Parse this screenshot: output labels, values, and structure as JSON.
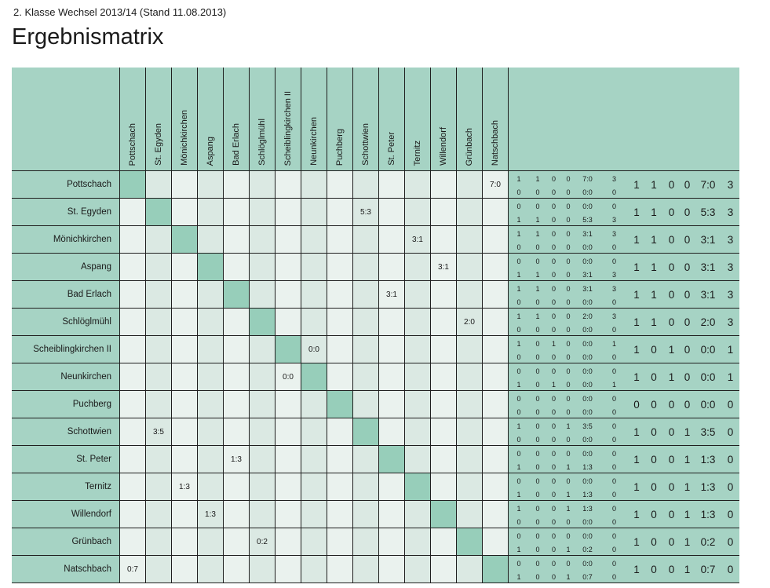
{
  "page": {
    "subtitle": "2. Klasse Wechsel 2013/14 (Stand 11.08.2013)",
    "title": "Ergebnismatrix"
  },
  "colors": {
    "header_bg": "#a6d3c4",
    "diagonal_bg": "#97ceba",
    "cell_light": "#eaf2ee",
    "cell_dark": "#dbe9e3",
    "border": "#1f1f1f",
    "text": "#1a1a1a"
  },
  "teams": [
    "Pottschach",
    "St. Egyden",
    "Mönichkirchen",
    "Aspang",
    "Bad Erlach",
    "Schlöglmühl",
    "Scheiblingkirchen II",
    "Neunkirchen",
    "Puchberg",
    "Schottwien",
    "St. Peter",
    "Ternitz",
    "Willendorf",
    "Grünbach",
    "Natschbach"
  ],
  "rows": [
    {
      "team": "Pottschach",
      "results": [
        "",
        "",
        "",
        "",
        "",
        "",
        "",
        "",
        "",
        "",
        "",
        "",
        "",
        "",
        "7:0"
      ],
      "home": [
        "1",
        "1",
        "0",
        "0",
        "7:0",
        "3"
      ],
      "away": [
        "0",
        "0",
        "0",
        "0",
        "0:0",
        "0"
      ],
      "total": [
        "1",
        "1",
        "0",
        "0",
        "7:0",
        "3"
      ]
    },
    {
      "team": "St. Egyden",
      "results": [
        "",
        "",
        "",
        "",
        "",
        "",
        "",
        "",
        "",
        "5:3",
        "",
        "",
        "",
        "",
        ""
      ],
      "home": [
        "0",
        "0",
        "0",
        "0",
        "0:0",
        "0"
      ],
      "away": [
        "1",
        "1",
        "0",
        "0",
        "5:3",
        "3"
      ],
      "total": [
        "1",
        "1",
        "0",
        "0",
        "5:3",
        "3"
      ]
    },
    {
      "team": "Mönichkirchen",
      "results": [
        "",
        "",
        "",
        "",
        "",
        "",
        "",
        "",
        "",
        "",
        "",
        "3:1",
        "",
        "",
        ""
      ],
      "home": [
        "1",
        "1",
        "0",
        "0",
        "3:1",
        "3"
      ],
      "away": [
        "0",
        "0",
        "0",
        "0",
        "0:0",
        "0"
      ],
      "total": [
        "1",
        "1",
        "0",
        "0",
        "3:1",
        "3"
      ]
    },
    {
      "team": "Aspang",
      "results": [
        "",
        "",
        "",
        "",
        "",
        "",
        "",
        "",
        "",
        "",
        "",
        "",
        "3:1",
        "",
        ""
      ],
      "home": [
        "0",
        "0",
        "0",
        "0",
        "0:0",
        "0"
      ],
      "away": [
        "1",
        "1",
        "0",
        "0",
        "3:1",
        "3"
      ],
      "total": [
        "1",
        "1",
        "0",
        "0",
        "3:1",
        "3"
      ]
    },
    {
      "team": "Bad Erlach",
      "results": [
        "",
        "",
        "",
        "",
        "",
        "",
        "",
        "",
        "",
        "",
        "3:1",
        "",
        "",
        "",
        ""
      ],
      "home": [
        "1",
        "1",
        "0",
        "0",
        "3:1",
        "3"
      ],
      "away": [
        "0",
        "0",
        "0",
        "0",
        "0:0",
        "0"
      ],
      "total": [
        "1",
        "1",
        "0",
        "0",
        "3:1",
        "3"
      ]
    },
    {
      "team": "Schlöglmühl",
      "results": [
        "",
        "",
        "",
        "",
        "",
        "",
        "",
        "",
        "",
        "",
        "",
        "",
        "",
        "2:0",
        ""
      ],
      "home": [
        "1",
        "1",
        "0",
        "0",
        "2:0",
        "3"
      ],
      "away": [
        "0",
        "0",
        "0",
        "0",
        "0:0",
        "0"
      ],
      "total": [
        "1",
        "1",
        "0",
        "0",
        "2:0",
        "3"
      ]
    },
    {
      "team": "Scheiblingkirchen II",
      "results": [
        "",
        "",
        "",
        "",
        "",
        "",
        "",
        "0:0",
        "",
        "",
        "",
        "",
        "",
        "",
        ""
      ],
      "home": [
        "1",
        "0",
        "1",
        "0",
        "0:0",
        "1"
      ],
      "away": [
        "0",
        "0",
        "0",
        "0",
        "0:0",
        "0"
      ],
      "total": [
        "1",
        "0",
        "1",
        "0",
        "0:0",
        "1"
      ]
    },
    {
      "team": "Neunkirchen",
      "results": [
        "",
        "",
        "",
        "",
        "",
        "",
        "0:0",
        "",
        "",
        "",
        "",
        "",
        "",
        "",
        ""
      ],
      "home": [
        "0",
        "0",
        "0",
        "0",
        "0:0",
        "0"
      ],
      "away": [
        "1",
        "0",
        "1",
        "0",
        "0:0",
        "1"
      ],
      "total": [
        "1",
        "0",
        "1",
        "0",
        "0:0",
        "1"
      ]
    },
    {
      "team": "Puchberg",
      "results": [
        "",
        "",
        "",
        "",
        "",
        "",
        "",
        "",
        "",
        "",
        "",
        "",
        "",
        "",
        ""
      ],
      "home": [
        "0",
        "0",
        "0",
        "0",
        "0:0",
        "0"
      ],
      "away": [
        "0",
        "0",
        "0",
        "0",
        "0:0",
        "0"
      ],
      "total": [
        "0",
        "0",
        "0",
        "0",
        "0:0",
        "0"
      ]
    },
    {
      "team": "Schottwien",
      "results": [
        "",
        "3:5",
        "",
        "",
        "",
        "",
        "",
        "",
        "",
        "",
        "",
        "",
        "",
        "",
        ""
      ],
      "home": [
        "1",
        "0",
        "0",
        "1",
        "3:5",
        "0"
      ],
      "away": [
        "0",
        "0",
        "0",
        "0",
        "0:0",
        "0"
      ],
      "total": [
        "1",
        "0",
        "0",
        "1",
        "3:5",
        "0"
      ]
    },
    {
      "team": "St. Peter",
      "results": [
        "",
        "",
        "",
        "",
        "1:3",
        "",
        "",
        "",
        "",
        "",
        "",
        "",
        "",
        "",
        ""
      ],
      "home": [
        "0",
        "0",
        "0",
        "0",
        "0:0",
        "0"
      ],
      "away": [
        "1",
        "0",
        "0",
        "1",
        "1:3",
        "0"
      ],
      "total": [
        "1",
        "0",
        "0",
        "1",
        "1:3",
        "0"
      ]
    },
    {
      "team": "Ternitz",
      "results": [
        "",
        "",
        "1:3",
        "",
        "",
        "",
        "",
        "",
        "",
        "",
        "",
        "",
        "",
        "",
        ""
      ],
      "home": [
        "0",
        "0",
        "0",
        "0",
        "0:0",
        "0"
      ],
      "away": [
        "1",
        "0",
        "0",
        "1",
        "1:3",
        "0"
      ],
      "total": [
        "1",
        "0",
        "0",
        "1",
        "1:3",
        "0"
      ]
    },
    {
      "team": "Willendorf",
      "results": [
        "",
        "",
        "",
        "1:3",
        "",
        "",
        "",
        "",
        "",
        "",
        "",
        "",
        "",
        "",
        ""
      ],
      "home": [
        "1",
        "0",
        "0",
        "1",
        "1:3",
        "0"
      ],
      "away": [
        "0",
        "0",
        "0",
        "0",
        "0:0",
        "0"
      ],
      "total": [
        "1",
        "0",
        "0",
        "1",
        "1:3",
        "0"
      ]
    },
    {
      "team": "Grünbach",
      "results": [
        "",
        "",
        "",
        "",
        "",
        "0:2",
        "",
        "",
        "",
        "",
        "",
        "",
        "",
        "",
        ""
      ],
      "home": [
        "0",
        "0",
        "0",
        "0",
        "0:0",
        "0"
      ],
      "away": [
        "1",
        "0",
        "0",
        "1",
        "0:2",
        "0"
      ],
      "total": [
        "1",
        "0",
        "0",
        "1",
        "0:2",
        "0"
      ]
    },
    {
      "team": "Natschbach",
      "results": [
        "0:7",
        "",
        "",
        "",
        "",
        "",
        "",
        "",
        "",
        "",
        "",
        "",
        "",
        "",
        ""
      ],
      "home": [
        "0",
        "0",
        "0",
        "0",
        "0:0",
        "0"
      ],
      "away": [
        "1",
        "0",
        "0",
        "1",
        "0:7",
        "0"
      ],
      "total": [
        "1",
        "0",
        "0",
        "1",
        "0:7",
        "0"
      ]
    }
  ]
}
